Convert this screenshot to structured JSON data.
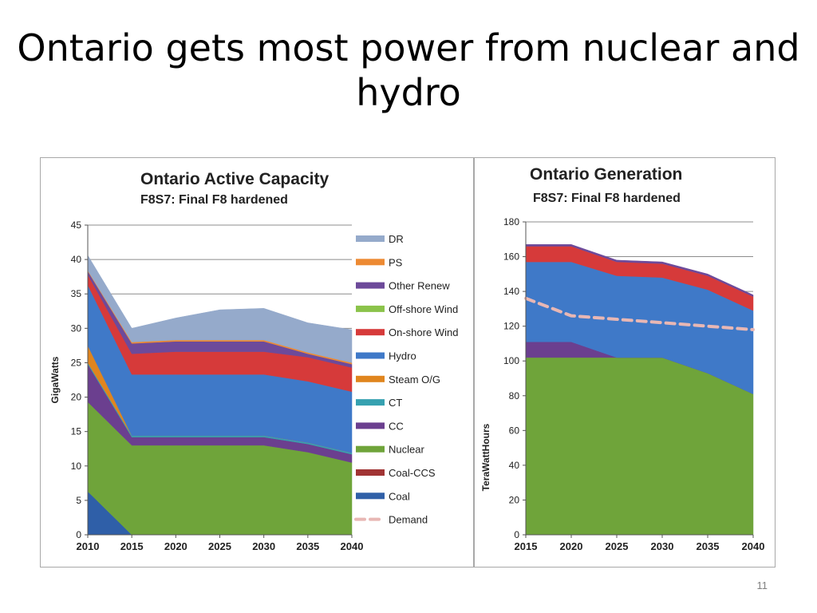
{
  "slide": {
    "title": "Ontario gets most power from nuclear and hydro",
    "page_number": "11"
  },
  "colors": {
    "DR": "#95aacb",
    "PS": "#ed8a33",
    "Other Renew": "#6d4a9a",
    "Off-shore Wind": "#8bc34a",
    "On-shore Wind": "#d63a3a",
    "Hydro": "#3f79c8",
    "Steam O/G": "#e0851e",
    "CT": "#36a1b0",
    "CC": "#6b3f8f",
    "Nuclear": "#6fa43a",
    "Coal-CCS": "#a13434",
    "Coal": "#2f5fa8",
    "Demand": "#e8b7b4",
    "grid": "#8c8c8c"
  },
  "chart_data": [
    {
      "type": "area",
      "title": "Ontario Active Capacity",
      "subtitle": "F8S7: Final F8 hardened",
      "xlabel": "",
      "ylabel": "GigaWatts",
      "x": [
        2010,
        2015,
        2020,
        2025,
        2030,
        2035,
        2040
      ],
      "ylim": [
        0,
        45
      ],
      "yticks": [
        0,
        5,
        10,
        15,
        20,
        25,
        30,
        35,
        40,
        45
      ],
      "grid": true,
      "stacked": true,
      "series": [
        {
          "name": "Coal",
          "values": [
            6.3,
            0,
            0,
            0,
            0,
            0,
            0
          ]
        },
        {
          "name": "Coal-CCS",
          "values": [
            0,
            0,
            0,
            0,
            0,
            0,
            0
          ]
        },
        {
          "name": "Nuclear",
          "values": [
            13.0,
            13.0,
            13.0,
            13.0,
            13.0,
            12.0,
            10.5
          ]
        },
        {
          "name": "CC",
          "values": [
            5.5,
            1.2,
            1.2,
            1.2,
            1.2,
            1.2,
            1.2
          ]
        },
        {
          "name": "CT",
          "values": [
            0.2,
            0.2,
            0.2,
            0.2,
            0.2,
            0.2,
            0.2
          ]
        },
        {
          "name": "Steam O/G",
          "values": [
            2.5,
            0,
            0,
            0,
            0,
            0,
            0
          ]
        },
        {
          "name": "Hydro",
          "values": [
            8.8,
            8.9,
            8.9,
            8.9,
            8.9,
            8.9,
            8.9
          ]
        },
        {
          "name": "On-shore Wind",
          "values": [
            1.5,
            3.0,
            3.3,
            3.3,
            3.3,
            3.5,
            3.5
          ]
        },
        {
          "name": "Off-shore Wind",
          "values": [
            0,
            0,
            0,
            0,
            0,
            0,
            0
          ]
        },
        {
          "name": "Other Renew",
          "values": [
            0.5,
            1.5,
            1.5,
            1.5,
            1.5,
            0.5,
            0.5
          ]
        },
        {
          "name": "PS",
          "values": [
            0.1,
            0.2,
            0.2,
            0.2,
            0.2,
            0.2,
            0.2
          ]
        },
        {
          "name": "DR",
          "values": [
            2.2,
            2.0,
            3.2,
            4.4,
            4.6,
            4.3,
            4.8
          ]
        }
      ],
      "legend": [
        "DR",
        "PS",
        "Other Renew",
        "Off-shore Wind",
        "On-shore Wind",
        "Hydro",
        "Steam O/G",
        "CT",
        "CC",
        "Nuclear",
        "Coal-CCS",
        "Coal",
        "Demand"
      ],
      "legend_position": "right"
    },
    {
      "type": "area",
      "title": "Ontario Generation",
      "subtitle": "F8S7: Final F8 hardened",
      "xlabel": "",
      "ylabel": "TeraWattHours",
      "x": [
        2015,
        2020,
        2025,
        2030,
        2035,
        2040
      ],
      "ylim": [
        0,
        180
      ],
      "yticks": [
        0,
        20,
        40,
        60,
        80,
        100,
        120,
        140,
        160,
        180
      ],
      "grid": true,
      "stacked": true,
      "series": [
        {
          "name": "Nuclear",
          "values": [
            102,
            102,
            102,
            102,
            93,
            81
          ]
        },
        {
          "name": "CC",
          "values": [
            9,
            9,
            0,
            0,
            0,
            0
          ]
        },
        {
          "name": "Hydro",
          "values": [
            46,
            46,
            47,
            46,
            48,
            48
          ]
        },
        {
          "name": "On-shore Wind",
          "values": [
            9,
            9,
            8,
            8,
            8,
            8
          ]
        },
        {
          "name": "Other Renew",
          "values": [
            1,
            1,
            1,
            1,
            1,
            1
          ]
        }
      ],
      "demand": {
        "name": "Demand",
        "values": [
          136,
          126,
          124,
          122,
          120,
          118
        ]
      }
    }
  ]
}
